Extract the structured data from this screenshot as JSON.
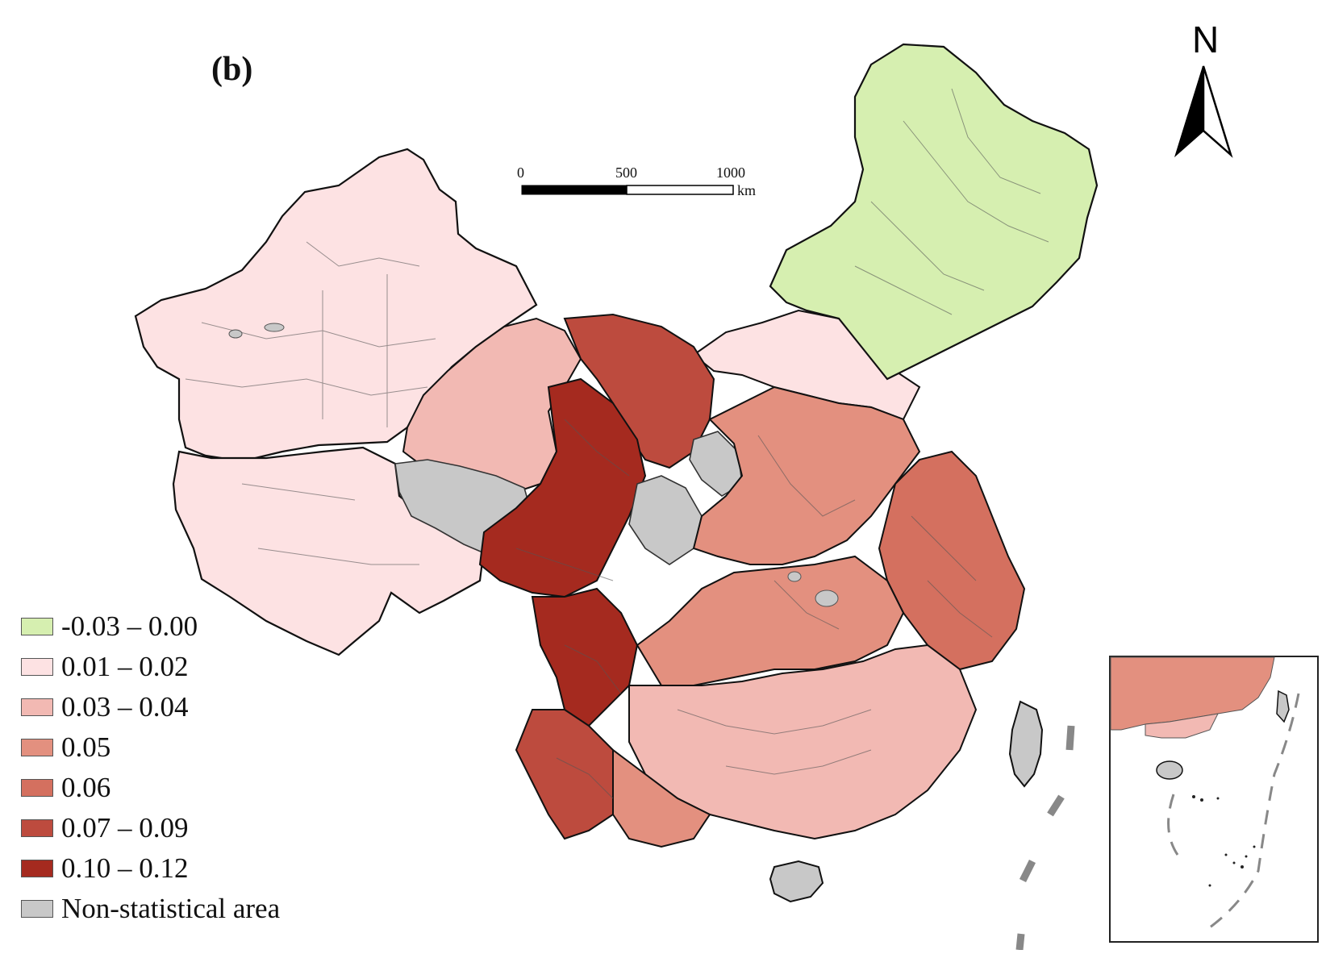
{
  "figure": {
    "panel_label": "(b)",
    "north_label": "N"
  },
  "scale_bar": {
    "ticks": [
      "0",
      "500",
      "1000"
    ],
    "unit": "km"
  },
  "legend": {
    "items": [
      {
        "label": "-0.03 – 0.00",
        "color": "#d6efb0"
      },
      {
        "label": "0.01 – 0.02",
        "color": "#fde2e3"
      },
      {
        "label": "0.03 – 0.04",
        "color": "#f2b9b3"
      },
      {
        "label": "0.05",
        "color": "#e3907f"
      },
      {
        "label": "0.06",
        "color": "#d4705f"
      },
      {
        "label": "0.07 – 0.09",
        "color": "#bd4b3e"
      },
      {
        "label": "0.10 – 0.12",
        "color": "#a52a1f"
      },
      {
        "label": "Non-statistical area",
        "color": "#c8c8c8"
      }
    ]
  },
  "map": {
    "regions": [
      {
        "region": "northeast",
        "class": "-0.03 – 0.00"
      },
      {
        "region": "northwest",
        "class": "0.01 – 0.02"
      },
      {
        "region": "north-central strip",
        "class": "0.01 – 0.02"
      },
      {
        "region": "west-central",
        "class": "0.03 – 0.04"
      },
      {
        "region": "central",
        "class": "0.05"
      },
      {
        "region": "southwest",
        "class": "0.10 – 0.12"
      },
      {
        "region": "east",
        "class": "0.06"
      },
      {
        "region": "south",
        "class": "0.03 – 0.04"
      },
      {
        "region": "islands",
        "class": "Non-statistical area"
      }
    ]
  }
}
